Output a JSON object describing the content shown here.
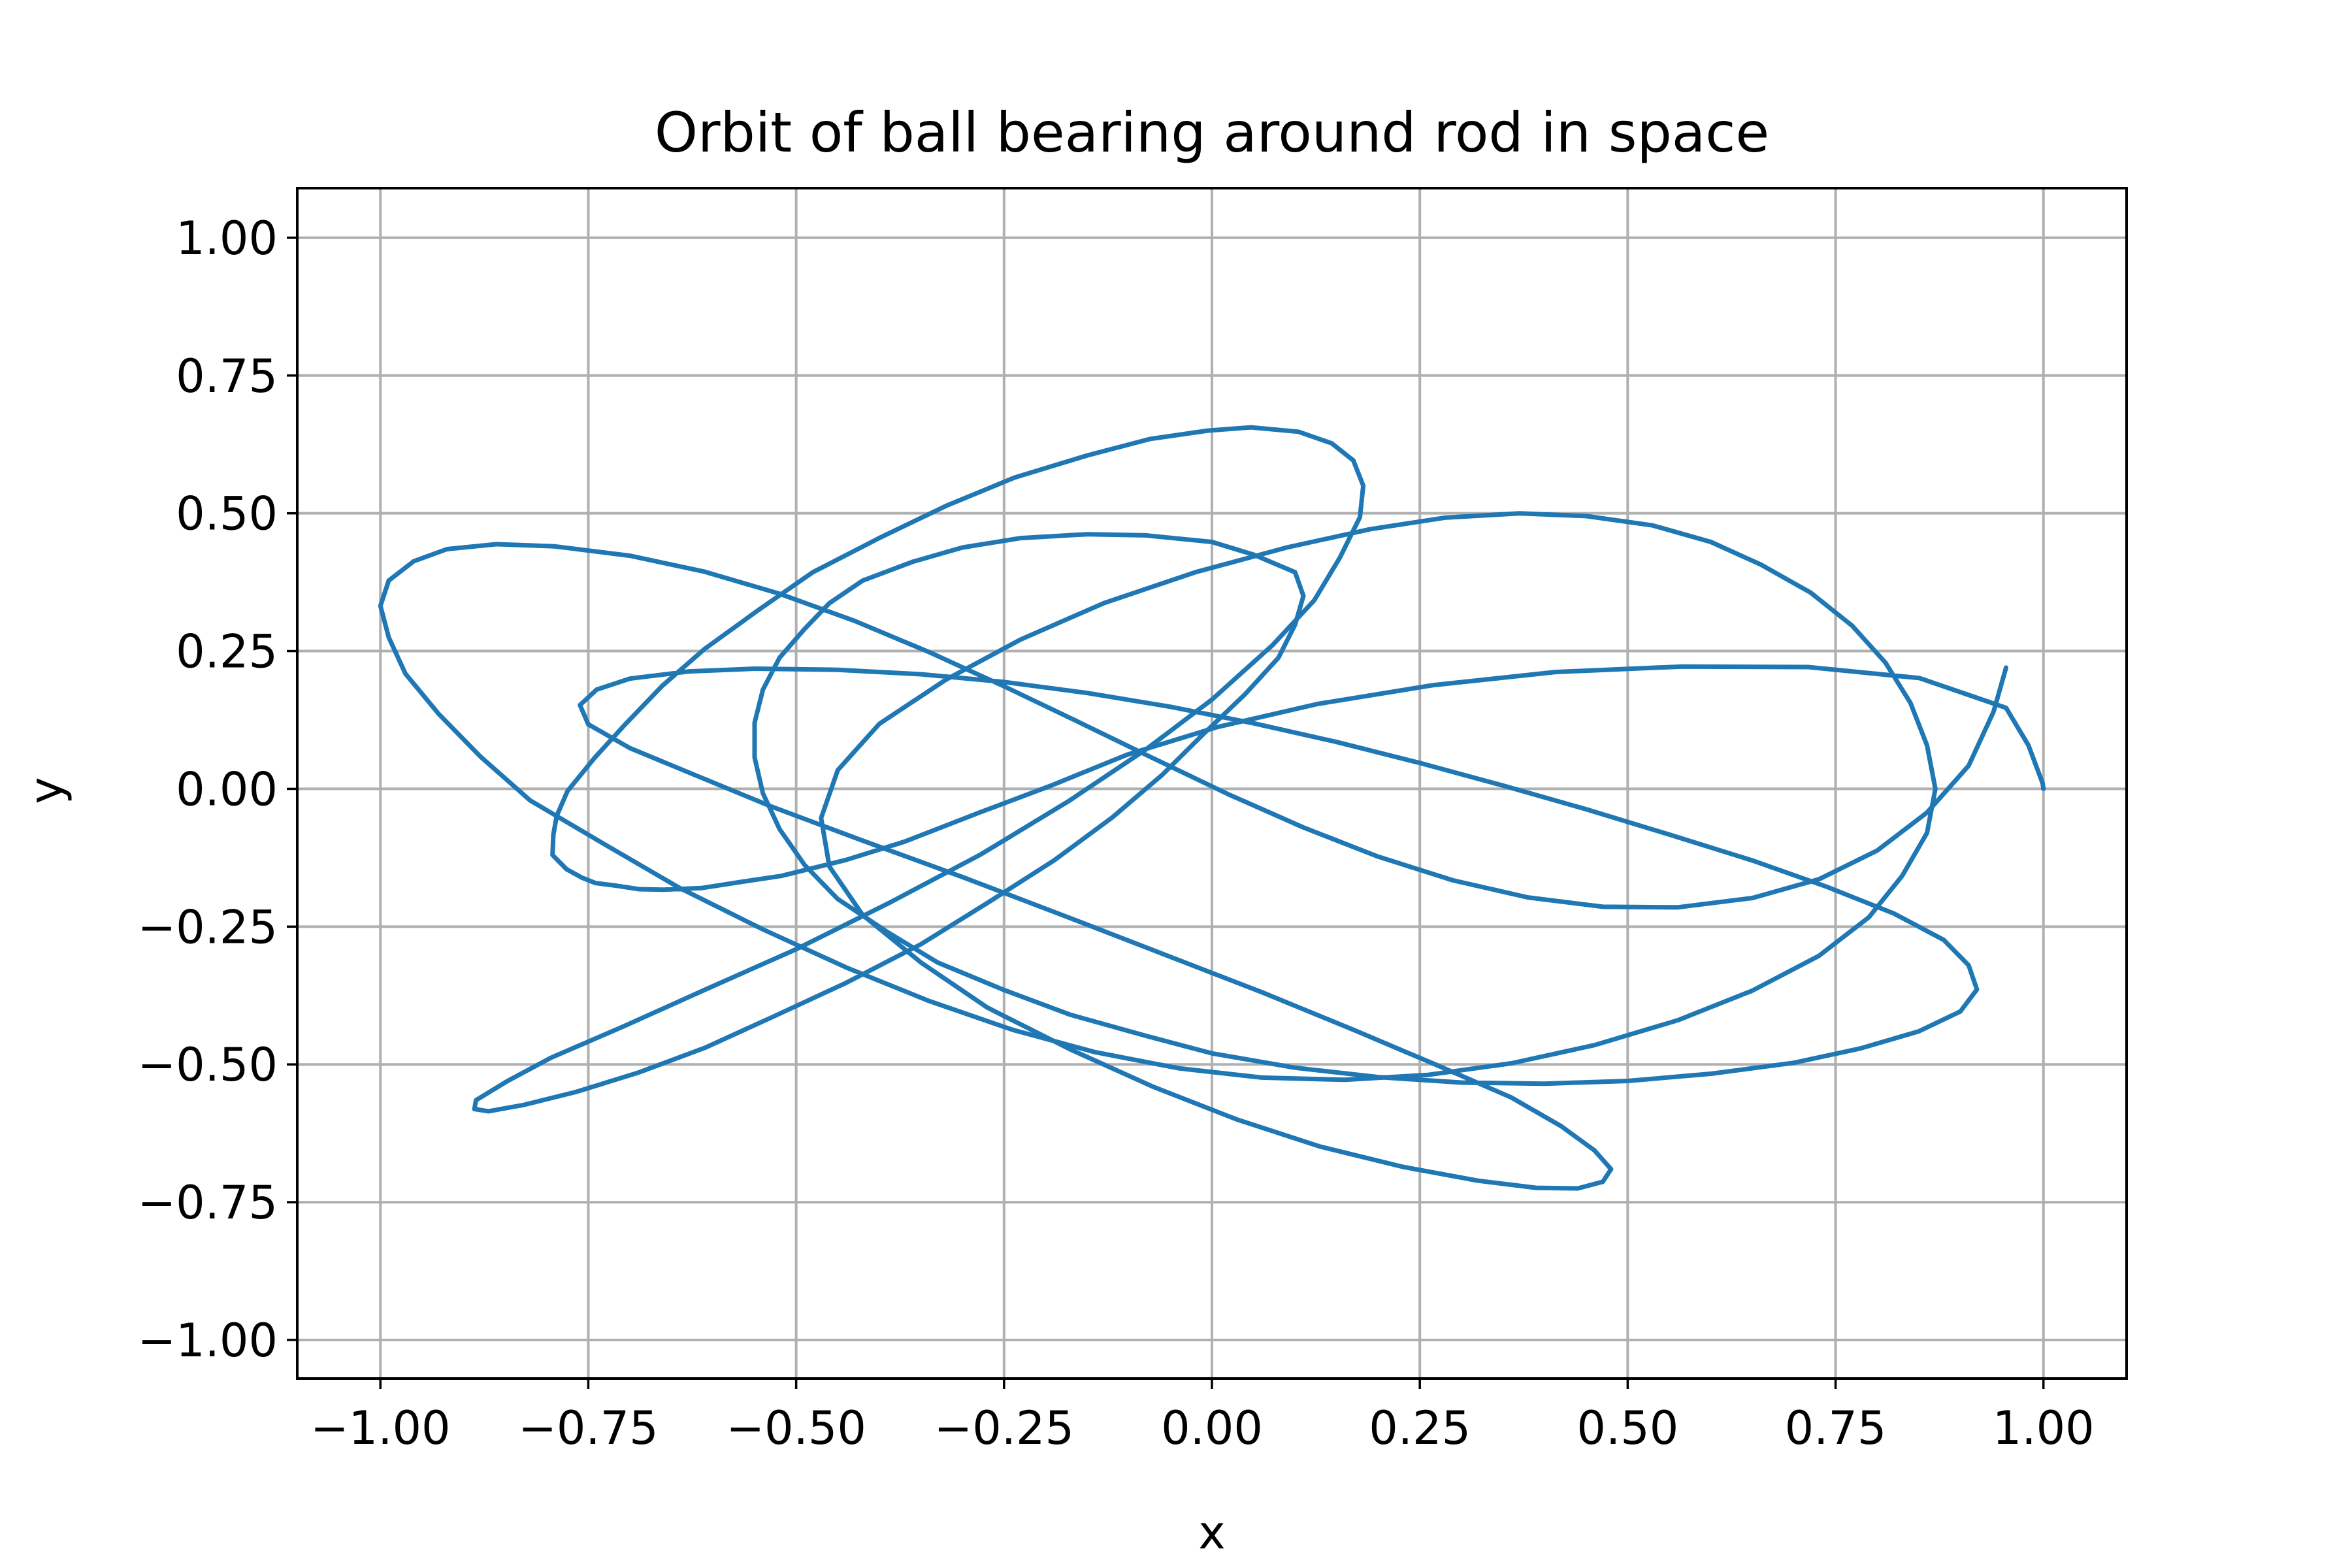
{
  "chart_data": {
    "type": "line",
    "title": "Orbit of ball bearing around rod in space",
    "xlabel": "x",
    "ylabel": "y",
    "xlim": [
      -1.1,
      1.1
    ],
    "ylim": [
      -1.07,
      1.09
    ],
    "xticks": [
      -1.0,
      -0.75,
      -0.5,
      -0.25,
      0.0,
      0.25,
      0.5,
      0.75,
      1.0
    ],
    "yticks": [
      -1.0,
      -0.75,
      -0.5,
      -0.25,
      0.0,
      0.25,
      0.5,
      0.75,
      1.0
    ],
    "xtick_labels": [
      "−1.00",
      "−0.75",
      "−0.50",
      "−0.25",
      "0.00",
      "0.25",
      "0.50",
      "0.75",
      "1.00"
    ],
    "ytick_labels": [
      "−1.00",
      "−0.75",
      "−0.50",
      "−0.25",
      "0.00",
      "0.25",
      "0.50",
      "0.75",
      "1.00"
    ],
    "grid": true,
    "series": [
      {
        "color": "#1f77b4",
        "x": [
          1.0,
          0.999,
          0.982,
          0.955,
          0.851,
          0.717,
          0.566,
          0.413,
          0.265,
          0.127,
          0.006,
          -0.102,
          -0.195,
          -0.278,
          -0.37,
          -0.44,
          -0.518,
          -0.567,
          -0.614,
          -0.66,
          -0.689,
          -0.715,
          -0.741,
          -0.758,
          -0.776,
          -0.793,
          -0.792,
          -0.788,
          -0.775,
          -0.742,
          -0.705,
          -0.661,
          -0.61,
          -0.545,
          -0.48,
          -0.399,
          -0.319,
          -0.237,
          -0.15,
          -0.074,
          -0.005,
          0.047,
          0.104,
          0.144,
          0.17,
          0.182,
          0.178,
          0.154,
          0.123,
          0.073,
          0.0,
          -0.079,
          -0.173,
          -0.278,
          -0.387,
          -0.5,
          -0.609,
          -0.706,
          -0.795,
          -0.847,
          -0.885,
          -0.887,
          -0.87,
          -0.829,
          -0.765,
          -0.69,
          -0.61,
          -0.53,
          -0.44,
          -0.35,
          -0.27,
          -0.19,
          -0.12,
          -0.06,
          -0.01,
          0.04,
          0.08,
          0.1,
          0.11,
          0.1,
          0.05,
          0.0,
          -0.08,
          -0.15,
          -0.23,
          -0.3,
          -0.36,
          -0.42,
          -0.46,
          -0.49,
          -0.52,
          -0.54,
          -0.55,
          -0.55,
          -0.54,
          -0.52,
          -0.49,
          -0.45,
          -0.39,
          -0.33,
          -0.25,
          -0.17,
          -0.08,
          0.0,
          0.1,
          0.2,
          0.3,
          0.4,
          0.5,
          0.6,
          0.7,
          0.78,
          0.85,
          0.9,
          0.92,
          0.91,
          0.88,
          0.82,
          0.74,
          0.65,
          0.55,
          0.45,
          0.35,
          0.25,
          0.15,
          0.05,
          -0.05,
          -0.15,
          -0.25,
          -0.35,
          -0.45,
          -0.55,
          -0.63,
          -0.7,
          -0.74,
          -0.76,
          -0.75,
          -0.7,
          -0.62,
          -0.53,
          -0.42,
          -0.3,
          -0.18,
          -0.06,
          0.06,
          0.17,
          0.27,
          0.36,
          0.42,
          0.46,
          0.48,
          0.47,
          0.44,
          0.39,
          0.32,
          0.23,
          0.13,
          0.03,
          -0.07,
          -0.17,
          -0.27,
          -0.35,
          -0.42,
          -0.46,
          -0.47,
          -0.45,
          -0.4,
          -0.32,
          -0.23,
          -0.13,
          -0.02,
          0.09,
          0.19,
          0.28,
          0.37,
          0.45,
          0.53,
          0.6,
          0.66,
          0.72,
          0.77,
          0.81,
          0.84,
          0.86,
          0.87,
          0.86,
          0.83,
          0.79,
          0.73,
          0.65,
          0.56,
          0.46,
          0.36,
          0.26,
          0.16,
          0.06,
          -0.04,
          -0.14,
          -0.24,
          -0.34,
          -0.44,
          -0.54,
          -0.64,
          -0.73,
          -0.82,
          -0.88,
          -0.93,
          -0.97,
          -0.99,
          -1.0,
          -0.99,
          -0.96,
          -0.92,
          -0.86,
          -0.79,
          -0.7,
          -0.61,
          -0.52,
          -0.43,
          -0.34,
          -0.25,
          -0.16,
          -0.07,
          0.02,
          0.11,
          0.2,
          0.29,
          0.38,
          0.47,
          0.56,
          0.65,
          0.73,
          0.8,
          0.86,
          0.91,
          0.94,
          0.955
        ],
        "y": [
          0.0,
          0.01,
          0.079,
          0.147,
          0.201,
          0.221,
          0.222,
          0.212,
          0.188,
          0.154,
          0.112,
          0.062,
          0.005,
          -0.042,
          -0.096,
          -0.129,
          -0.158,
          -0.169,
          -0.18,
          -0.183,
          -0.182,
          -0.176,
          -0.171,
          -0.161,
          -0.146,
          -0.12,
          -0.083,
          -0.049,
          -0.004,
          0.057,
          0.118,
          0.187,
          0.254,
          0.325,
          0.393,
          0.456,
          0.514,
          0.565,
          0.605,
          0.635,
          0.65,
          0.656,
          0.648,
          0.627,
          0.596,
          0.55,
          0.493,
          0.42,
          0.342,
          0.261,
          0.162,
          0.072,
          -0.023,
          -0.119,
          -0.206,
          -0.291,
          -0.364,
          -0.43,
          -0.488,
          -0.53,
          -0.565,
          -0.581,
          -0.585,
          -0.574,
          -0.55,
          -0.515,
          -0.47,
          -0.415,
          -0.352,
          -0.282,
          -0.207,
          -0.13,
          -0.052,
          0.025,
          0.1,
          0.172,
          0.238,
          0.298,
          0.35,
          0.393,
          0.425,
          0.448,
          0.46,
          0.462,
          0.455,
          0.438,
          0.412,
          0.378,
          0.337,
          0.29,
          0.238,
          0.18,
          0.12,
          0.057,
          -0.008,
          -0.073,
          -0.138,
          -0.2,
          -0.26,
          -0.315,
          -0.365,
          -0.41,
          -0.448,
          -0.48,
          -0.506,
          -0.523,
          -0.533,
          -0.535,
          -0.53,
          -0.517,
          -0.497,
          -0.471,
          -0.44,
          -0.404,
          -0.364,
          -0.32,
          -0.274,
          -0.226,
          -0.178,
          -0.13,
          -0.083,
          -0.037,
          0.006,
          0.047,
          0.085,
          0.119,
          0.149,
          0.174,
          0.194,
          0.208,
          0.216,
          0.218,
          0.213,
          0.2,
          0.18,
          0.152,
          0.117,
          0.074,
          0.024,
          -0.032,
          -0.094,
          -0.16,
          -0.229,
          -0.299,
          -0.369,
          -0.437,
          -0.501,
          -0.56,
          -0.612,
          -0.656,
          -0.69,
          -0.713,
          -0.725,
          -0.724,
          -0.711,
          -0.686,
          -0.649,
          -0.6,
          -0.541,
          -0.473,
          -0.397,
          -0.315,
          -0.229,
          -0.141,
          -0.053,
          0.034,
          0.118,
          0.198,
          0.271,
          0.337,
          0.393,
          0.438,
          0.471,
          0.492,
          0.5,
          0.495,
          0.478,
          0.448,
          0.407,
          0.356,
          0.296,
          0.229,
          0.156,
          0.079,
          0.0,
          -0.08,
          -0.158,
          -0.233,
          -0.303,
          -0.366,
          -0.42,
          -0.465,
          -0.498,
          -0.519,
          -0.528,
          -0.524,
          -0.507,
          -0.478,
          -0.437,
          -0.385,
          -0.324,
          -0.255,
          -0.18,
          -0.101,
          -0.021,
          0.059,
          0.136,
          0.209,
          0.275,
          0.332,
          0.378,
          0.413,
          0.435,
          0.444,
          0.44,
          0.423,
          0.394,
          0.354,
          0.305,
          0.248,
          0.186,
          0.121,
          0.055,
          -0.01,
          -0.07,
          -0.123,
          -0.166,
          -0.197,
          -0.214,
          -0.215,
          -0.198,
          -0.164,
          -0.112,
          -0.043,
          0.042,
          0.14,
          0.22
        ]
      }
    ]
  }
}
